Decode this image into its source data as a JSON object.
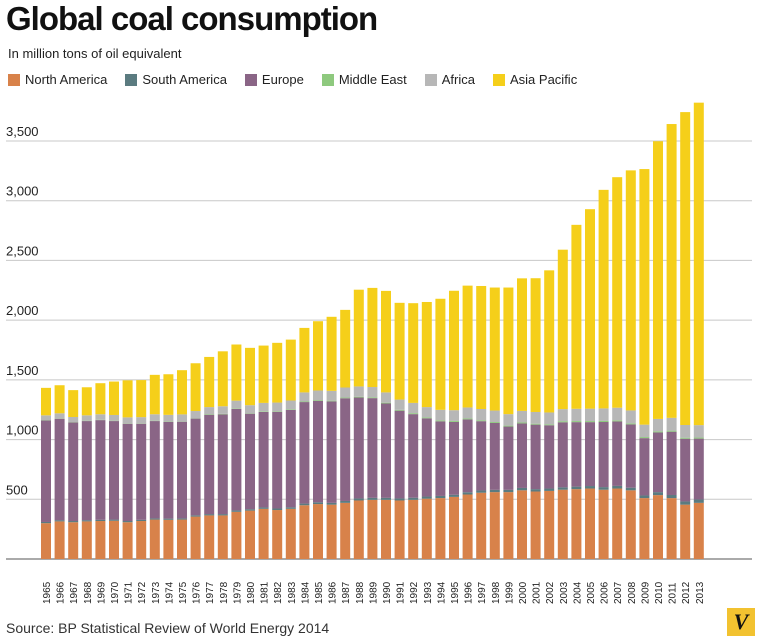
{
  "page": {
    "title": "Global coal consumption",
    "subtitle": "In million tons of oil equivalent",
    "source": "Source: BP Statistical Review of World Energy 2014",
    "logo_letter": "V"
  },
  "chart_data": {
    "type": "bar",
    "stacked": true,
    "title": "Global coal consumption",
    "subtitle": "In million tons of oil equivalent",
    "xlabel": "",
    "ylabel": "",
    "ylim": [
      0,
      3900
    ],
    "yticks": [
      500,
      1000,
      1500,
      2000,
      2500,
      3000,
      3500
    ],
    "ytick_labels": [
      "500",
      "1,000",
      "1,500",
      "2,000",
      "2,500",
      "3,000",
      "3,500"
    ],
    "grid": true,
    "legend_position": "top-left",
    "categories": [
      "1965",
      "1966",
      "1967",
      "1968",
      "1969",
      "1970",
      "1971",
      "1972",
      "1973",
      "1974",
      "1975",
      "1976",
      "1977",
      "1978",
      "1979",
      "1980",
      "1981",
      "1982",
      "1983",
      "1984",
      "1985",
      "1986",
      "1987",
      "1988",
      "1989",
      "1990",
      "1991",
      "1992",
      "1993",
      "1994",
      "1995",
      "1996",
      "1997",
      "1998",
      "1999",
      "2000",
      "2001",
      "2002",
      "2003",
      "2004",
      "2005",
      "2006",
      "2007",
      "2008",
      "2009",
      "2010",
      "2011",
      "2012",
      "2013"
    ],
    "series": [
      {
        "name": "North America",
        "color": "#d8824a",
        "values": [
          300,
          315,
          308,
          315,
          318,
          320,
          308,
          318,
          330,
          328,
          330,
          355,
          365,
          365,
          395,
          405,
          420,
          410,
          420,
          450,
          460,
          455,
          470,
          490,
          495,
          495,
          490,
          495,
          505,
          510,
          520,
          540,
          555,
          560,
          560,
          575,
          565,
          570,
          580,
          585,
          590,
          580,
          590,
          575,
          510,
          535,
          510,
          455,
          470
        ]
      },
      {
        "name": "South America",
        "color": "#5b7b80",
        "values": [
          10,
          10,
          10,
          10,
          10,
          10,
          10,
          10,
          10,
          10,
          10,
          11,
          11,
          11,
          12,
          12,
          12,
          13,
          13,
          14,
          15,
          15,
          16,
          17,
          17,
          17,
          17,
          18,
          18,
          18,
          18,
          19,
          19,
          19,
          19,
          20,
          20,
          20,
          20,
          21,
          21,
          22,
          22,
          22,
          22,
          25,
          26,
          27,
          28
        ]
      },
      {
        "name": "Europe",
        "color": "#8a6586",
        "values": [
          850,
          850,
          825,
          830,
          835,
          825,
          815,
          805,
          815,
          810,
          810,
          810,
          830,
          835,
          850,
          800,
          800,
          810,
          815,
          850,
          850,
          850,
          860,
          845,
          835,
          790,
          735,
          700,
          655,
          625,
          610,
          610,
          580,
          560,
          530,
          540,
          540,
          530,
          545,
          540,
          535,
          545,
          540,
          530,
          480,
          500,
          530,
          525,
          510
        ]
      },
      {
        "name": "Middle East",
        "color": "#8ec97e",
        "values": [
          3,
          3,
          3,
          3,
          3,
          3,
          3,
          3,
          3,
          3,
          3,
          3,
          4,
          4,
          4,
          4,
          5,
          5,
          5,
          5,
          6,
          6,
          6,
          7,
          7,
          7,
          7,
          8,
          8,
          8,
          8,
          8,
          8,
          8,
          8,
          8,
          8,
          8,
          9,
          9,
          9,
          9,
          9,
          9,
          9,
          9,
          9,
          9,
          9
        ]
      },
      {
        "name": "Africa",
        "color": "#b7b7b7",
        "values": [
          40,
          42,
          43,
          45,
          46,
          48,
          50,
          52,
          54,
          56,
          58,
          60,
          62,
          64,
          65,
          67,
          70,
          72,
          74,
          76,
          80,
          82,
          84,
          86,
          86,
          86,
          86,
          86,
          86,
          88,
          90,
          92,
          94,
          96,
          96,
          97,
          98,
          99,
          101,
          103,
          104,
          105,
          106,
          108,
          104,
          104,
          107,
          106,
          104
        ]
      },
      {
        "name": "Asia Pacific",
        "color": "#f5cf1a",
        "values": [
          230,
          235,
          225,
          235,
          260,
          280,
          310,
          310,
          330,
          340,
          370,
          400,
          420,
          460,
          470,
          480,
          480,
          500,
          510,
          540,
          580,
          620,
          650,
          810,
          830,
          850,
          810,
          835,
          880,
          930,
          1000,
          1020,
          1030,
          1030,
          1060,
          1110,
          1120,
          1190,
          1335,
          1540,
          1670,
          1830,
          1930,
          2010,
          2140,
          2325,
          2460,
          2620,
          2700
        ]
      }
    ]
  }
}
